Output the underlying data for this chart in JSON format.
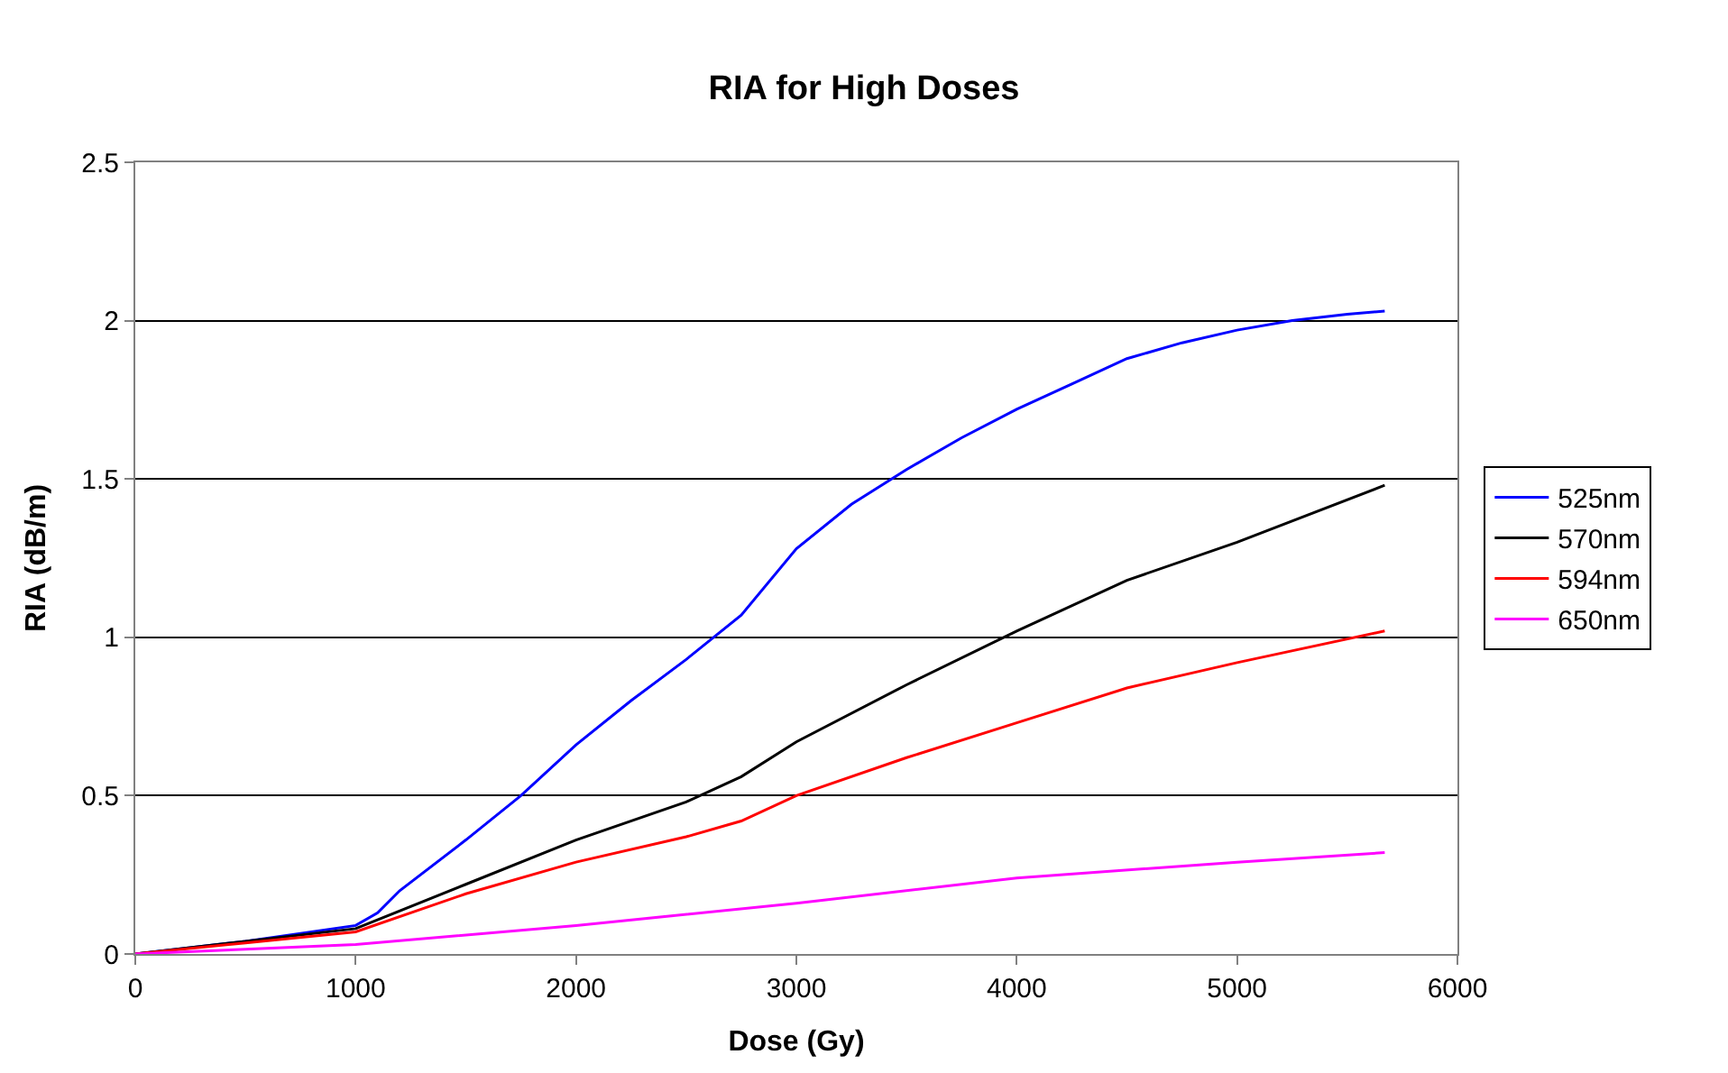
{
  "chart_data": {
    "type": "line",
    "title": "RIA for High Doses",
    "xlabel": "Dose (Gy)",
    "ylabel": "RIA (dB/m)",
    "xlim": [
      0,
      6000
    ],
    "xticks": [
      0,
      1000,
      2000,
      3000,
      4000,
      5000,
      6000
    ],
    "ylim": [
      0,
      2.5
    ],
    "yticks": [
      0,
      0.5,
      1,
      1.5,
      2,
      2.5
    ],
    "grid": "y",
    "legend": "right",
    "marker": "none",
    "line_style": "solid",
    "series": [
      {
        "name": "525nm",
        "color": "#0000ff",
        "x": [
          0,
          500,
          1000,
          1100,
          1200,
          1500,
          1750,
          2000,
          2250,
          2500,
          2750,
          3000,
          3250,
          3500,
          3750,
          4000,
          4250,
          4500,
          4750,
          5000,
          5250,
          5500,
          5670
        ],
        "values": [
          0,
          0.04,
          0.09,
          0.13,
          0.2,
          0.36,
          0.5,
          0.66,
          0.8,
          0.93,
          1.07,
          1.28,
          1.42,
          1.53,
          1.63,
          1.72,
          1.8,
          1.88,
          1.93,
          1.97,
          2.0,
          2.02,
          2.03
        ]
      },
      {
        "name": "570nm",
        "color": "#000000",
        "x": [
          0,
          500,
          1000,
          1500,
          2000,
          2500,
          2750,
          3000,
          3500,
          4000,
          4500,
          5000,
          5670
        ],
        "values": [
          0,
          0.04,
          0.08,
          0.22,
          0.36,
          0.48,
          0.56,
          0.67,
          0.85,
          1.02,
          1.18,
          1.3,
          1.48
        ]
      },
      {
        "name": "594nm",
        "color": "#ff0000",
        "x": [
          0,
          500,
          1000,
          1500,
          2000,
          2500,
          2750,
          3000,
          3500,
          4000,
          4500,
          5000,
          5670
        ],
        "values": [
          0,
          0.035,
          0.07,
          0.19,
          0.29,
          0.37,
          0.42,
          0.5,
          0.62,
          0.73,
          0.84,
          0.92,
          1.02
        ]
      },
      {
        "name": "650nm",
        "color": "#ff00ff",
        "x": [
          0,
          500,
          1000,
          2000,
          3000,
          4000,
          5000,
          5670
        ],
        "values": [
          0,
          0.015,
          0.03,
          0.09,
          0.16,
          0.24,
          0.29,
          0.32
        ]
      }
    ]
  }
}
